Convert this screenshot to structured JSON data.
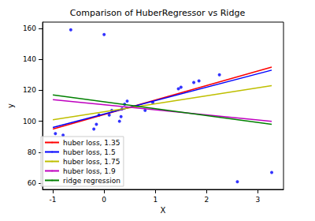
{
  "chart_data": {
    "type": "scatter",
    "title": "Comparison of HuberRegressor vs Ridge",
    "x_label": "X",
    "y_label": "y",
    "xlim": [
      -1.2,
      3.5
    ],
    "xticks": [
      -1,
      0,
      1,
      2,
      3
    ],
    "ylim": [
      56,
      164
    ],
    "yticks": [
      60,
      80,
      100,
      120,
      140,
      160
    ],
    "grid": false,
    "legend": "lower left",
    "series": [
      {
        "type": "scatter",
        "color": "#0000ff",
        "marker": "circle",
        "x": [
          -0.95,
          -0.8,
          -0.65,
          -0.2,
          -0.15,
          -0.1,
          0.0,
          0.1,
          0.15,
          0.3,
          0.33,
          0.35,
          0.4,
          0.45,
          0.8,
          0.95,
          1.45,
          1.5,
          1.75,
          1.85,
          2.25,
          2.6,
          3.27
        ],
        "values": [
          92,
          91,
          159,
          95,
          98,
          104,
          156,
          104,
          107,
          100,
          103,
          108,
          111,
          113,
          107,
          112,
          121,
          122,
          125,
          126,
          130,
          61,
          67
        ]
      },
      {
        "type": "line",
        "name": "huber loss, 1.35",
        "color": "#ff0000",
        "line_style": "solid",
        "x": [
          -1,
          3.27
        ],
        "values": [
          95,
          135
        ]
      },
      {
        "type": "line",
        "name": "huber loss, 1.5",
        "color": "#0000ff",
        "line_style": "solid",
        "x": [
          -1,
          3.27
        ],
        "values": [
          96,
          133
        ]
      },
      {
        "type": "line",
        "name": "huber loss, 1.75",
        "color": "#bfbf00",
        "line_style": "solid",
        "x": [
          -1,
          3.27
        ],
        "values": [
          101,
          123
        ]
      },
      {
        "type": "line",
        "name": "huber loss, 1.9",
        "color": "#bf00bf",
        "line_style": "solid",
        "x": [
          -1,
          3.27
        ],
        "values": [
          114,
          100
        ]
      },
      {
        "type": "line",
        "name": "ridge regression",
        "color": "#008000",
        "line_style": "solid",
        "x": [
          -1,
          3.27
        ],
        "values": [
          117,
          98
        ]
      }
    ]
  }
}
